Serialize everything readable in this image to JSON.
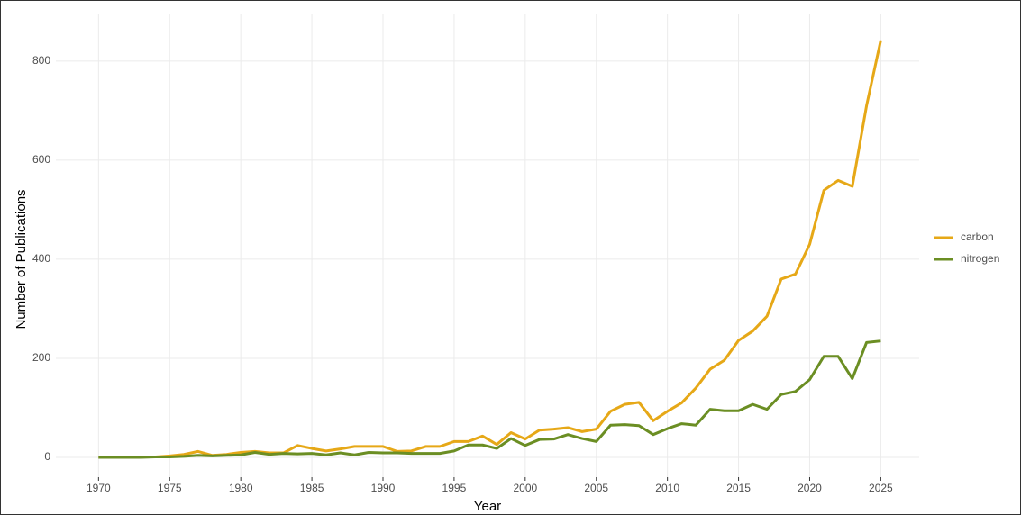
{
  "chart_data": {
    "type": "line",
    "x_label": "Year",
    "y_label": "Number of Publications",
    "x": [
      1970,
      1971,
      1972,
      1973,
      1974,
      1975,
      1976,
      1977,
      1978,
      1979,
      1980,
      1981,
      1982,
      1983,
      1984,
      1985,
      1986,
      1987,
      1988,
      1989,
      1990,
      1991,
      1992,
      1993,
      1994,
      1995,
      1996,
      1997,
      1998,
      1999,
      2000,
      2001,
      2002,
      2003,
      2004,
      2005,
      2006,
      2007,
      2008,
      2009,
      2010,
      2011,
      2012,
      2013,
      2014,
      2015,
      2016,
      2017,
      2018,
      2019,
      2020,
      2021,
      2022,
      2023,
      2024,
      2025
    ],
    "series": [
      {
        "name": "carbon",
        "color": "#e6a817",
        "values": [
          0,
          0,
          0,
          1,
          1,
          3,
          6,
          12,
          4,
          6,
          10,
          12,
          9,
          9,
          24,
          18,
          13,
          17,
          22,
          22,
          22,
          12,
          13,
          22,
          22,
          32,
          32,
          43,
          26,
          50,
          37,
          55,
          57,
          60,
          52,
          57,
          93,
          107,
          111,
          74,
          93,
          110,
          140,
          178,
          196,
          236,
          255,
          285,
          360,
          370,
          430,
          539,
          559,
          547,
          710,
          842
        ]
      },
      {
        "name": "nitrogen",
        "color": "#6b8e23",
        "values": [
          0,
          0,
          0,
          0,
          1,
          1,
          2,
          4,
          3,
          4,
          5,
          10,
          6,
          8,
          7,
          8,
          5,
          9,
          5,
          10,
          9,
          9,
          8,
          8,
          8,
          13,
          25,
          25,
          18,
          38,
          24,
          36,
          37,
          46,
          38,
          32,
          65,
          66,
          64,
          46,
          58,
          68,
          65,
          97,
          94,
          94,
          107,
          97,
          127,
          133,
          157,
          204,
          204,
          159,
          232,
          235
        ]
      }
    ],
    "xlim": [
      1967,
      2027.7
    ],
    "xticks": [
      1970,
      1975,
      1980,
      1985,
      1990,
      1995,
      2000,
      2005,
      2010,
      2015,
      2020,
      2025
    ],
    "ylim": [
      -40,
      896
    ],
    "yticks": [
      0,
      200,
      400,
      600,
      800
    ],
    "grid": true,
    "legend": "right"
  }
}
